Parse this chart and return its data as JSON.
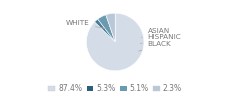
{
  "labels": [
    "WHITE",
    "ASIAN",
    "HISPANIC",
    "BLACK"
  ],
  "values": [
    87.4,
    2.3,
    5.1,
    5.3
  ],
  "colors": [
    "#d4dce8",
    "#4a7c96",
    "#6a9ab0",
    "#b8c8d8"
  ],
  "legend_labels": [
    "87.4%",
    "5.3%",
    "5.1%",
    "2.3%"
  ],
  "legend_colors": [
    "#d4dce8",
    "#2e5f7a",
    "#6a9ab0",
    "#b8c8d8"
  ],
  "label_fontsize": 5.2,
  "legend_fontsize": 5.5,
  "startangle": 90
}
